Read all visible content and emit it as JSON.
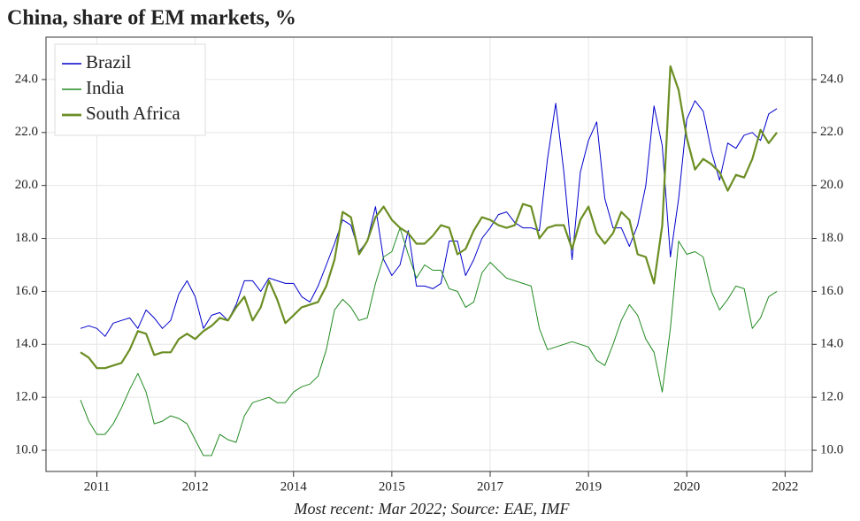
{
  "chart_data": {
    "type": "line",
    "title": "China, share of EM markets, %",
    "caption": "Most recent: Mar 2022; Source: EAE, IMF",
    "categories": [
      null,
      null,
      "2011",
      null,
      null,
      null,
      null,
      null,
      null,
      null,
      null,
      null,
      null,
      null,
      "2012",
      null,
      null,
      null,
      null,
      null,
      null,
      null,
      null,
      null,
      null,
      null,
      "2014",
      null,
      null,
      null,
      null,
      null,
      null,
      null,
      null,
      null,
      null,
      null,
      "2015",
      null,
      null,
      null,
      null,
      null,
      null,
      null,
      null,
      null,
      null,
      null,
      "2017",
      null,
      null,
      null,
      null,
      null,
      null,
      null,
      null,
      null,
      null,
      null,
      "2019",
      null,
      null,
      null,
      null,
      null,
      null,
      null,
      null,
      null,
      null,
      null,
      "2020",
      null,
      null,
      null,
      null,
      null,
      null,
      null,
      null,
      null,
      null,
      null,
      "2022"
    ],
    "series": [
      {
        "name": "Brazil",
        "color": "#0000cc",
        "width": 1,
        "values": [
          14.6,
          14.7,
          14.6,
          14.3,
          14.8,
          14.9,
          15.0,
          14.6,
          15.3,
          15.0,
          14.6,
          14.9,
          15.9,
          16.4,
          15.8,
          14.6,
          15.1,
          15.2,
          14.9,
          15.5,
          16.4,
          16.4,
          16.0,
          16.5,
          16.4,
          16.3,
          16.3,
          15.8,
          15.6,
          16.2,
          17.0,
          17.8,
          18.7,
          18.5,
          17.5,
          17.9,
          19.2,
          17.2,
          16.6,
          17.0,
          18.3,
          16.2,
          16.2,
          16.1,
          16.3,
          17.9,
          17.9,
          16.6,
          17.2,
          18.0,
          18.4,
          18.9,
          19.0,
          18.6,
          18.4,
          18.4,
          18.3,
          21.0,
          23.1,
          20.5,
          17.2,
          20.5,
          21.7,
          22.4,
          19.5,
          18.4,
          18.4,
          17.7,
          18.5,
          20.0,
          23.0,
          21.5,
          17.3,
          19.5,
          22.5,
          23.2,
          22.8,
          21.3,
          20.2,
          21.6,
          21.4,
          21.9,
          22.0,
          21.7,
          22.7,
          22.9,
          null
        ]
      },
      {
        "name": "India",
        "color": "#228b22",
        "width": 1,
        "values": [
          11.9,
          11.1,
          10.6,
          10.6,
          11.0,
          11.6,
          12.3,
          12.9,
          12.2,
          11.0,
          11.1,
          11.3,
          11.2,
          11.0,
          10.4,
          9.8,
          9.8,
          10.6,
          10.4,
          10.3,
          11.3,
          11.8,
          11.9,
          12.0,
          11.8,
          11.8,
          12.2,
          12.4,
          12.5,
          12.8,
          13.8,
          15.3,
          15.7,
          15.4,
          14.9,
          15.0,
          16.3,
          17.3,
          17.5,
          18.4,
          17.4,
          16.5,
          17.0,
          16.8,
          16.8,
          16.1,
          16.0,
          15.4,
          15.6,
          16.7,
          17.1,
          16.8,
          16.5,
          16.4,
          16.3,
          16.2,
          14.6,
          13.8,
          13.9,
          14.0,
          14.1,
          14.0,
          13.9,
          13.4,
          13.2,
          14.0,
          14.9,
          15.5,
          15.1,
          14.2,
          13.7,
          12.2,
          14.6,
          17.9,
          17.4,
          17.5,
          17.3,
          16.0,
          15.3,
          15.7,
          16.2,
          16.1,
          14.6,
          15.0,
          15.8,
          16.0,
          null
        ]
      },
      {
        "name": "South Africa",
        "color": "#6b8e23",
        "width": 2.2,
        "values": [
          13.7,
          13.5,
          13.1,
          13.1,
          13.2,
          13.3,
          13.8,
          14.5,
          14.4,
          13.6,
          13.7,
          13.7,
          14.2,
          14.4,
          14.2,
          14.5,
          14.7,
          15.0,
          14.9,
          15.4,
          15.8,
          14.9,
          15.4,
          16.4,
          15.7,
          14.8,
          15.1,
          15.4,
          15.5,
          15.6,
          16.2,
          17.2,
          19.0,
          18.8,
          17.4,
          17.9,
          18.8,
          19.2,
          18.7,
          18.4,
          18.2,
          17.8,
          17.8,
          18.1,
          18.5,
          18.4,
          17.4,
          17.6,
          18.3,
          18.8,
          18.7,
          18.5,
          18.4,
          18.5,
          19.3,
          19.2,
          18.0,
          18.4,
          18.5,
          18.5,
          17.6,
          18.7,
          19.2,
          18.2,
          17.8,
          18.2,
          19.0,
          18.7,
          17.4,
          17.3,
          16.3,
          18.5,
          24.5,
          23.6,
          21.8,
          20.6,
          21.0,
          20.8,
          20.5,
          19.8,
          20.4,
          20.3,
          21.0,
          22.1,
          21.6,
          22.0,
          null
        ]
      }
    ],
    "ylim": [
      9.2,
      25.6
    ],
    "yticks": [
      {
        "value": 10,
        "label": "10.0"
      },
      {
        "value": 12,
        "label": "12.0"
      },
      {
        "value": 14,
        "label": "14.0"
      },
      {
        "value": 16,
        "label": "16.0"
      },
      {
        "value": 18,
        "label": "18.0"
      },
      {
        "value": 20,
        "label": "20.0"
      },
      {
        "value": 22,
        "label": "22.0"
      },
      {
        "value": 24,
        "label": "24.0"
      }
    ],
    "grid": true,
    "legend": "upper left"
  }
}
